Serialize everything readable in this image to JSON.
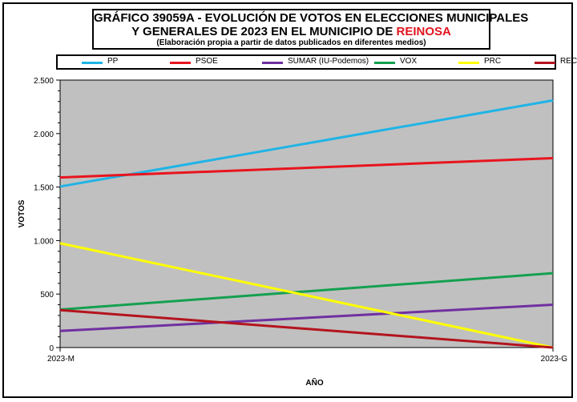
{
  "title": {
    "line1": "GRÁFICO 39059A - EVOLUCIÓN DE VOTOS EN ELECCIONES MUNICIPALES",
    "line2_prefix": "Y GENERALES DE 2023 EN EL MUNICIPIO DE",
    "line2_highlight": "REINOSA",
    "subtitle": "(Elaboración propia a partir de datos publicados en diferentes medios)"
  },
  "colors": {
    "plot_background": "#c0c0c0",
    "highlight": "#e0141e"
  },
  "chart_data": {
    "type": "line",
    "categories": [
      "2023-M",
      "2023-G"
    ],
    "xlabel": "AÑO",
    "ylabel": "VOTOS",
    "ylim": [
      0,
      2500
    ],
    "yticks": [
      0,
      500,
      1000,
      1500,
      2000,
      2500
    ],
    "ytick_labels": [
      "0",
      "500",
      "1.000",
      "1.500",
      "2.000",
      "2.500"
    ],
    "grid": false,
    "legend_position": "top",
    "series": [
      {
        "name": "PP",
        "color": "#1fb4e6",
        "values": [
          1505,
          2310
        ]
      },
      {
        "name": "PSOE",
        "color": "#e8141e",
        "values": [
          1590,
          1770
        ]
      },
      {
        "name": "SUMAR (IU-Podemos)",
        "color": "#7030a0",
        "values": [
          155,
          400
        ]
      },
      {
        "name": "VOX",
        "color": "#14a050",
        "values": [
          355,
          695
        ]
      },
      {
        "name": "PRC",
        "color": "#ffff00",
        "values": [
          975,
          0
        ]
      },
      {
        "name": "REC",
        "color": "#b4141e",
        "values": [
          350,
          0
        ]
      }
    ]
  }
}
